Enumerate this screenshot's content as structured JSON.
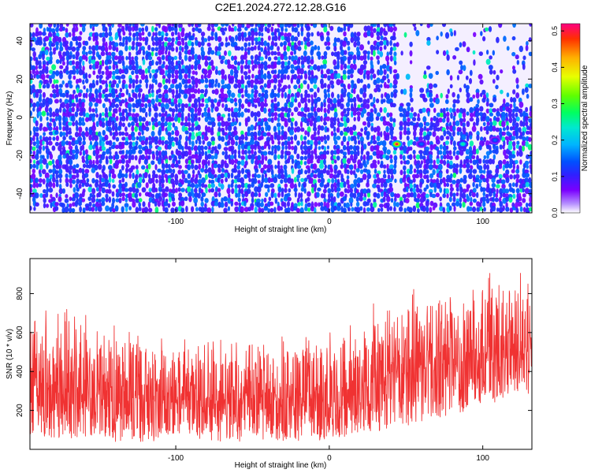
{
  "chart_data": [
    {
      "type": "heatmap",
      "title": "C2E1.2024.272.12.28.G16",
      "xlabel": "Height of straight line (km)",
      "ylabel": "Frequency (Hz)",
      "xlim": [
        -195,
        132
      ],
      "ylim": [
        -50,
        49
      ],
      "xticks": [
        -100,
        0,
        100
      ],
      "yticks": [
        -40,
        -20,
        0,
        20,
        40
      ],
      "colorbar": {
        "label": "Normalized spectral amplitude",
        "range": [
          0,
          0.52
        ],
        "ticks": [
          0.0,
          0.1,
          0.2,
          0.3,
          0.4,
          0.5
        ],
        "colors": [
          "#ffffff",
          "#b48cff",
          "#7a00ff",
          "#3020ff",
          "#0050ff",
          "#00b4ff",
          "#00e8d0",
          "#00ff60",
          "#60ff00",
          "#e8ff00",
          "#ffb000",
          "#ff3000",
          "#ff0080"
        ]
      },
      "features": [
        {
          "x": 44,
          "y": -14,
          "level": 0.5
        },
        {
          "x": 87,
          "y": -14,
          "level": 0.25
        },
        {
          "x": 60,
          "y": -14,
          "level": 0.15
        },
        {
          "x": 108,
          "y": -12,
          "level": 0.15
        }
      ]
    },
    {
      "type": "line",
      "xlabel": "Height of straight line (km)",
      "ylabel": "SNR (10 * v/v)",
      "xlim": [
        -195,
        132
      ],
      "ylim": [
        0,
        980
      ],
      "xticks": [
        -100,
        0,
        100
      ],
      "yticks": [
        200,
        400,
        600,
        800
      ],
      "color": "#f03232",
      "series": [
        {
          "x": [
            -195,
            -180,
            -160,
            -140,
            -120,
            -100,
            -80,
            -60,
            -40,
            -20,
            0,
            20,
            40,
            60,
            80,
            100,
            120,
            132
          ],
          "y_center": [
            300,
            290,
            280,
            270,
            260,
            250,
            250,
            250,
            250,
            260,
            280,
            320,
            370,
            410,
            440,
            460,
            480,
            490
          ],
          "y_low": [
            70,
            60,
            50,
            40,
            40,
            40,
            40,
            40,
            40,
            40,
            50,
            70,
            100,
            140,
            180,
            220,
            260,
            280
          ],
          "y_high": [
            700,
            640,
            620,
            580,
            520,
            500,
            490,
            500,
            500,
            520,
            550,
            620,
            700,
            740,
            780,
            820,
            860,
            880
          ]
        }
      ]
    }
  ]
}
